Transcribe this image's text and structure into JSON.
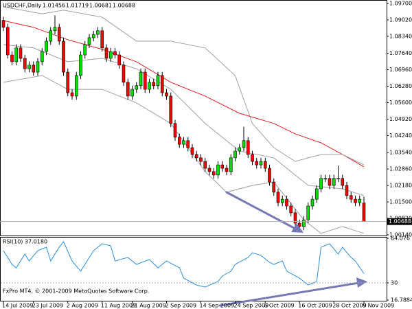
{
  "chart_data": [
    {
      "type": "candlestick",
      "title": "USDCHF,Daily",
      "categories": [
        "14 Jul 2009",
        null,
        null,
        null,
        null,
        null,
        null,
        "23 Jul 2009",
        null,
        null,
        null,
        null,
        null,
        null,
        null,
        "2 Aug 2009",
        null,
        null,
        null,
        null,
        null,
        null,
        null,
        "11 Aug 2009",
        null,
        null,
        null,
        null,
        null,
        null,
        "21 Aug 2009",
        null,
        null,
        null,
        null,
        null,
        null,
        null,
        "2 Sep 2009",
        null,
        null,
        null,
        null,
        null,
        null,
        null,
        "14 Sep 2009",
        null,
        null,
        null,
        null,
        null,
        null,
        null,
        "24 Sep 2009",
        null,
        null,
        null,
        null,
        null,
        null,
        "6 Oct 2009",
        null,
        null,
        null,
        null,
        null,
        null,
        null,
        "16 Oct 2009",
        null,
        null,
        null,
        null,
        null,
        null,
        null,
        "28 Oct 2009",
        null,
        null,
        null,
        null,
        null,
        null,
        "9 Nov 2009"
      ],
      "open": [
        1.09,
        1.0871,
        1.0757,
        1.0729,
        1.0786,
        1.0743,
        1.07,
        1.0715,
        1.0686,
        1.0729,
        1.0771,
        1.0814,
        1.0857,
        1.0871,
        1.0814,
        1.0686,
        1.0601,
        1.0587,
        1.0672,
        1.0757,
        1.08,
        1.0828,
        1.0842,
        1.0857,
        1.0786,
        1.0743,
        1.0771,
        1.0757,
        1.0715,
        1.0644,
        1.0587,
        1.0615,
        1.063,
        1.0686,
        1.0615,
        1.0644,
        1.063,
        1.0672,
        1.0601,
        1.0587,
        1.0474,
        1.0417,
        1.0388,
        1.0403,
        1.0374,
        1.0346,
        1.0332,
        1.0317,
        1.0289,
        1.0275,
        1.0261,
        1.0303,
        1.0289,
        1.0275,
        1.0332,
        1.036,
        1.0374,
        1.0403,
        1.0346,
        1.0317,
        1.0303,
        1.0317,
        1.0289,
        1.0232,
        1.019,
        1.0147,
        1.0161,
        1.0133,
        1.0105,
        1.0062,
        1.0048,
        1.0076,
        1.0133,
        1.0161,
        1.0204,
        1.0247,
        1.0247,
        1.0218,
        1.0247,
        1.0247,
        1.0218,
        1.0176,
        1.0161,
        1.0147,
        1.01456
      ],
      "high": [
        1.0915,
        1.0886,
        1.0772,
        1.0801,
        1.0801,
        1.0758,
        1.073,
        1.073,
        1.0744,
        1.0786,
        1.0829,
        1.0872,
        1.092,
        1.0886,
        1.0829,
        1.0701,
        1.0616,
        1.0687,
        1.0772,
        1.0815,
        1.0843,
        1.0857,
        1.0872,
        1.0872,
        1.0801,
        1.0786,
        1.0786,
        1.0772,
        1.073,
        1.0659,
        1.063,
        1.0645,
        1.0701,
        1.0701,
        1.0659,
        1.0659,
        1.0687,
        1.0687,
        1.0616,
        1.0602,
        1.0489,
        1.0432,
        1.0418,
        1.0418,
        1.0389,
        1.0361,
        1.0347,
        1.0332,
        1.0304,
        1.029,
        1.0318,
        1.0318,
        1.0304,
        1.0347,
        1.0375,
        1.0389,
        1.046,
        1.0418,
        1.0361,
        1.0332,
        1.0332,
        1.0332,
        1.0304,
        1.0247,
        1.0205,
        1.0176,
        1.0176,
        1.0148,
        1.012,
        1.0077,
        1.0091,
        1.0148,
        1.0176,
        1.0219,
        1.0262,
        1.0262,
        1.0262,
        1.0262,
        1.03,
        1.0262,
        1.0233,
        1.0191,
        1.0176,
        1.0176,
        1.01719
      ],
      "low": [
        1.0856,
        1.0742,
        1.0714,
        1.0714,
        1.0728,
        1.0685,
        1.0685,
        1.0671,
        1.0671,
        1.0714,
        1.0756,
        1.0799,
        1.0842,
        1.0799,
        1.0671,
        1.0586,
        1.0572,
        1.0572,
        1.0657,
        1.0742,
        1.0785,
        1.0813,
        1.0827,
        1.0771,
        1.0728,
        1.0728,
        1.0742,
        1.07,
        1.0629,
        1.0572,
        1.0572,
        1.06,
        1.0615,
        1.06,
        1.06,
        1.0615,
        1.0615,
        1.0586,
        1.0572,
        1.0459,
        1.0402,
        1.0373,
        1.0373,
        1.0359,
        1.0331,
        1.0317,
        1.0302,
        1.0274,
        1.026,
        1.0246,
        1.0246,
        1.0274,
        1.026,
        1.026,
        1.0317,
        1.0345,
        1.0359,
        1.0331,
        1.0302,
        1.0288,
        1.0288,
        1.0274,
        1.0217,
        1.0175,
        1.0132,
        1.0132,
        1.0118,
        1.009,
        1.0047,
        1.0033,
        1.0033,
        1.0061,
        1.0118,
        1.0146,
        1.0189,
        1.0232,
        1.0203,
        1.0203,
        1.0232,
        1.0203,
        1.0161,
        1.0146,
        1.0132,
        1.0132,
        1.00681
      ],
      "close": [
        1.0871,
        1.0757,
        1.0729,
        1.0786,
        1.0743,
        1.07,
        1.0715,
        1.0686,
        1.0729,
        1.0771,
        1.0814,
        1.0857,
        1.0871,
        1.0814,
        1.0686,
        1.0601,
        1.0587,
        1.0672,
        1.0757,
        1.08,
        1.0828,
        1.0842,
        1.0857,
        1.0786,
        1.0743,
        1.0771,
        1.0757,
        1.0715,
        1.0644,
        1.0587,
        1.0615,
        1.063,
        1.0686,
        1.0615,
        1.0644,
        1.063,
        1.0672,
        1.0601,
        1.0587,
        1.0474,
        1.0417,
        1.0388,
        1.0403,
        1.0374,
        1.0346,
        1.0332,
        1.0317,
        1.0289,
        1.0275,
        1.0261,
        1.0303,
        1.0289,
        1.0275,
        1.0332,
        1.036,
        1.0374,
        1.0403,
        1.0346,
        1.0317,
        1.0303,
        1.0317,
        1.0289,
        1.0232,
        1.019,
        1.0147,
        1.0161,
        1.0133,
        1.0105,
        1.0062,
        1.0048,
        1.0076,
        1.0133,
        1.0161,
        1.0204,
        1.0247,
        1.0247,
        1.0218,
        1.0247,
        1.0247,
        1.0218,
        1.0176,
        1.0161,
        1.0147,
        1.0161,
        1.00688
      ],
      "up_color": "#00e000",
      "down_color": "#ff0000",
      "lines": [
        {
          "color": "#e02020",
          "x": [
            0,
            7,
            15,
            23,
            31,
            39,
            47,
            55,
            63,
            68,
            74,
            79,
            84
          ],
          "values": [
            1.0899,
            1.0871,
            1.082,
            1.078,
            1.0729,
            1.0644,
            1.0587,
            1.0516,
            1.0474,
            1.0431,
            1.0394,
            1.0346,
            1.0295
          ]
        },
        {
          "color": "#a0a0a0",
          "x": [
            0,
            9,
            14,
            23,
            31,
            39,
            47,
            54,
            58,
            63,
            68,
            74,
            79,
            84
          ],
          "values": [
            1.0956,
            1.0927,
            1.0942,
            1.0913,
            1.0814,
            1.0814,
            1.0786,
            1.0672,
            1.0474,
            1.0374,
            1.0317,
            1.0346,
            1.0346,
            1.0303
          ]
        },
        {
          "color": "#a0a0a0",
          "x": [
            0,
            7,
            15,
            23,
            31,
            39,
            47,
            55,
            63,
            71,
            79,
            84
          ],
          "values": [
            1.08,
            1.0786,
            1.0729,
            1.0743,
            1.07,
            1.0615,
            1.0474,
            1.036,
            1.0332,
            1.0218,
            1.0204,
            1.0176
          ]
        },
        {
          "color": "#a0a0a0",
          "x": [
            0,
            9,
            15,
            23,
            31,
            39,
            47,
            52,
            58,
            63,
            70,
            74,
            79,
            84
          ],
          "values": [
            1.0644,
            1.0672,
            1.0615,
            1.0615,
            1.0559,
            1.0474,
            1.0275,
            1.019,
            1.0218,
            1.0232,
            1.0076,
            1.002,
            1.0048,
            1.002
          ]
        }
      ],
      "ylim": [
        1.0011,
        1.0984
      ],
      "yticks": [
        {
          "value": 1.097,
          "label": "1.09700"
        },
        {
          "value": 1.0902,
          "label": "1.09020"
        },
        {
          "value": 1.0834,
          "label": "1.08340"
        },
        {
          "value": 1.0764,
          "label": "1.07640"
        },
        {
          "value": 1.0696,
          "label": "1.06960"
        },
        {
          "value": 1.0628,
          "label": "1.06280"
        },
        {
          "value": 1.056,
          "label": "1.05600"
        },
        {
          "value": 1.0492,
          "label": "1.04920"
        },
        {
          "value": 1.0424,
          "label": "1.04240"
        },
        {
          "value": 1.0354,
          "label": "1.03540"
        },
        {
          "value": 1.0286,
          "label": "1.02860"
        },
        {
          "value": 1.0218,
          "label": "1.02180"
        },
        {
          "value": 1.015,
          "label": "1.01500"
        },
        {
          "value": 1.0082,
          "label": "1.00820"
        },
        {
          "value": 1.0014,
          "label": "1.00140"
        }
      ]
    },
    {
      "type": "line",
      "title": "RSI(10) 37.0180",
      "footer": "FxPro MT4, © 2001-2009 MetaQuotes Software Corp.",
      "series": [
        {
          "color": "#2a8ee0",
          "x": [
            0,
            2,
            3,
            5,
            6,
            8,
            10,
            11,
            13,
            14,
            16,
            18,
            19,
            21,
            23,
            25,
            26,
            29,
            31,
            34,
            36,
            38,
            41,
            42,
            45,
            47,
            50,
            51,
            53,
            54,
            57,
            58,
            60,
            62,
            63,
            65,
            66,
            69,
            71,
            73,
            74,
            76,
            78,
            79,
            81,
            82,
            84
          ],
          "values": [
            54.6,
            44.1,
            41.5,
            52.0,
            46.7,
            54.6,
            57.2,
            46.7,
            57.2,
            61.5,
            46.7,
            38.9,
            44.1,
            54.6,
            59.9,
            58.3,
            46.7,
            49.4,
            44.1,
            47.8,
            41.5,
            46.7,
            41.5,
            33.6,
            28.3,
            26.8,
            31.0,
            35.2,
            38.9,
            44.1,
            49.4,
            53.0,
            50.9,
            45.7,
            44.1,
            46.7,
            38.9,
            33.6,
            28.3,
            31.0,
            57.2,
            59.9,
            52.0,
            57.2,
            49.4,
            46.7,
            37.018
          ]
        }
      ],
      "ylim": [
        16.7884,
        64.076
      ],
      "yticks": [
        64.076,
        30,
        16.7884
      ]
    }
  ]
}
